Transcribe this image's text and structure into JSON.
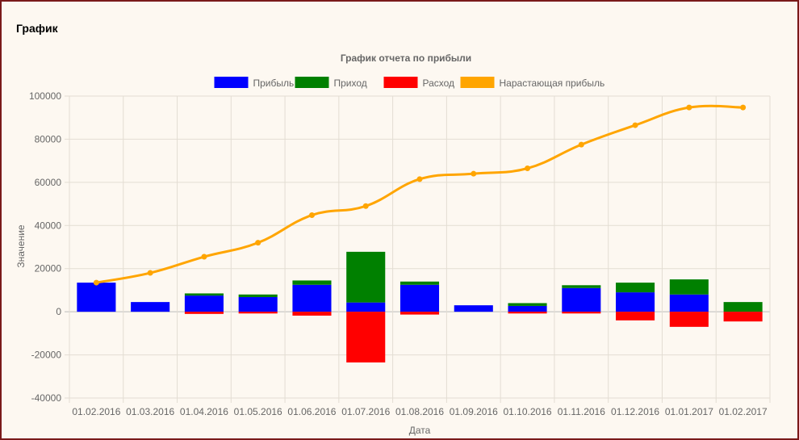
{
  "panel": {
    "title": "График"
  },
  "chart_data": {
    "type": "bar",
    "title": "График отчета по прибыли",
    "xlabel": "Дата",
    "ylabel": "Значение",
    "ylim": [
      -40000,
      100000
    ],
    "yticks": [
      "100000",
      "80000",
      "60000",
      "40000",
      "20000",
      "0",
      "-20000",
      "-40000"
    ],
    "grid": true,
    "legend_position": "top",
    "categories": [
      "01.02.2016",
      "01.03.2016",
      "01.04.2016",
      "01.05.2016",
      "01.06.2016",
      "01.07.2016",
      "01.08.2016",
      "01.09.2016",
      "01.10.2016",
      "01.11.2016",
      "01.12.2016",
      "01.01.2017",
      "01.02.2017"
    ],
    "series": [
      {
        "name": "Прибыль",
        "type": "bar",
        "color": "#0000ff",
        "values": [
          13500,
          4500,
          7500,
          6800,
          12500,
          4300,
          12500,
          3000,
          2700,
          11000,
          9000,
          8000,
          0
        ]
      },
      {
        "name": "Приход",
        "type": "bar",
        "color": "#008000",
        "values": [
          0,
          0,
          1000,
          1200,
          2000,
          23500,
          1500,
          0,
          1300,
          1300,
          4500,
          7000,
          4500
        ]
      },
      {
        "name": "Расход",
        "type": "bar",
        "color": "#ff0000",
        "values": [
          0,
          0,
          -1000,
          -800,
          -1800,
          -23500,
          -1300,
          0,
          -800,
          -800,
          -4000,
          -7000,
          -4500
        ]
      },
      {
        "name": "Нарастающая прибыль",
        "type": "line",
        "color": "#ffa500",
        "values": [
          13500,
          18000,
          25500,
          32000,
          44800,
          49000,
          61500,
          64000,
          66500,
          77500,
          86500,
          94700,
          94700
        ]
      }
    ]
  }
}
